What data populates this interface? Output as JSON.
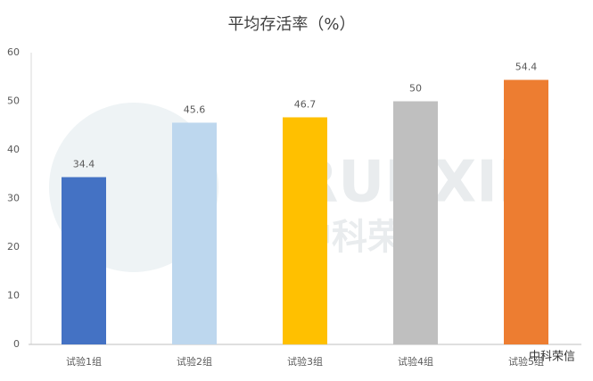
{
  "chart_data": {
    "type": "bar",
    "title": "平均存活率（%）",
    "categories": [
      "试验1组",
      "试验2组",
      "试验3组",
      "试验4组",
      "试验5组"
    ],
    "values": [
      34.4,
      45.6,
      46.7,
      50,
      54.4
    ],
    "colors": [
      "#4472c4",
      "#bdd7ee",
      "#ffc000",
      "#bfbfbf",
      "#ed7d31"
    ],
    "ylim": [
      0,
      60
    ],
    "yticks": [
      0,
      10,
      20,
      30,
      40,
      50,
      60
    ],
    "grid": false,
    "watermark": [
      "RUNXIN",
      "中科荣信"
    ],
    "source_mark": "中科荣信"
  }
}
